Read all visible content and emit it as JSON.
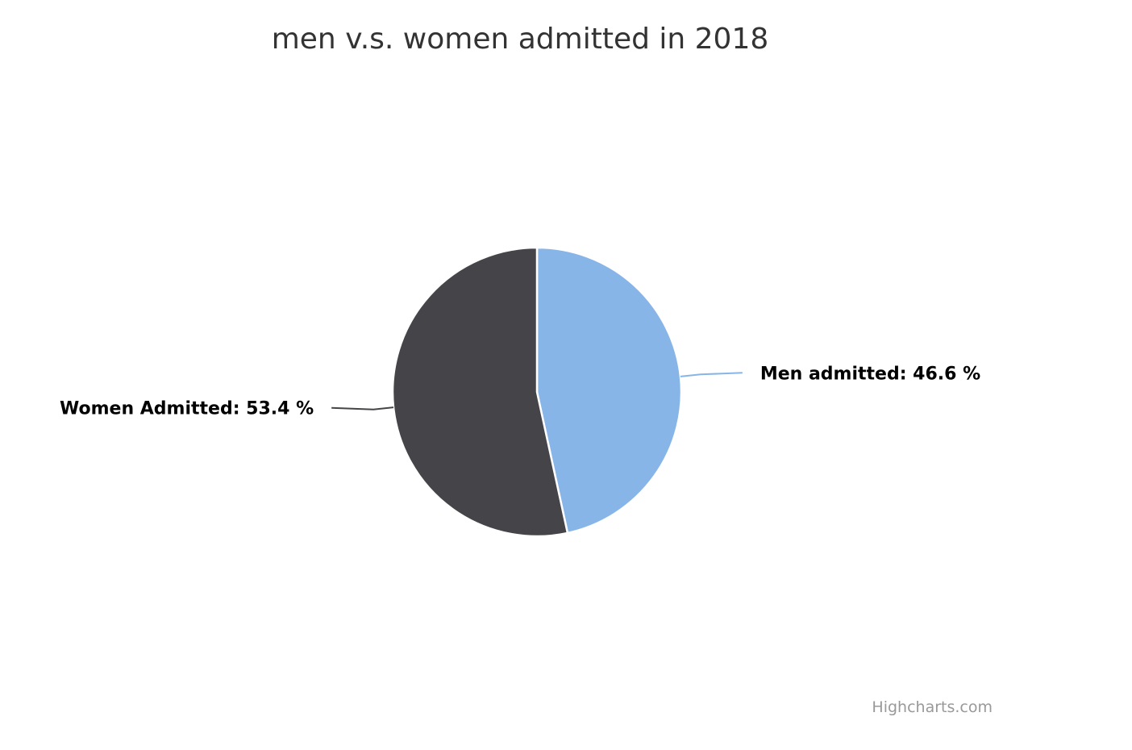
{
  "chart_data": {
    "type": "pie",
    "title": "men v.s. women admitted in 2018",
    "series": [
      {
        "slices": [
          {
            "name": "Men admitted",
            "value": 46.6,
            "label": "Men admitted: 46.6 %",
            "color": "#88b5e8"
          },
          {
            "name": "Women Admitted",
            "value": 53.4,
            "label": "Women Admitted: 53.4 %",
            "color": "#454449"
          }
        ]
      }
    ],
    "legend": "none",
    "data_labels": "outside"
  },
  "credits": {
    "text": "Highcharts.com"
  }
}
